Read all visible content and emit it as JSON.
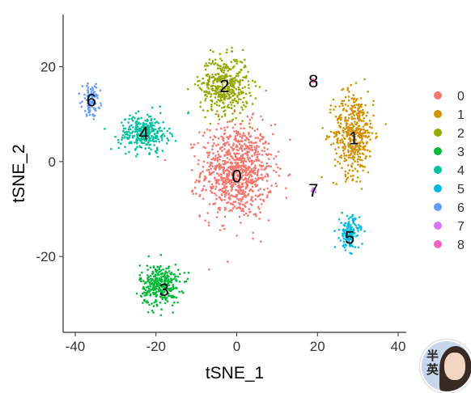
{
  "chart_data": {
    "type": "scatter",
    "title": "",
    "xlabel": "tSNE_1",
    "ylabel": "tSNE_2",
    "xlim": [
      -43,
      42
    ],
    "ylim": [
      -36,
      31
    ],
    "x_ticks": [
      -40,
      -20,
      0,
      20,
      40
    ],
    "y_ticks": [
      -20,
      0,
      20
    ],
    "grid": false,
    "legend_position": "right",
    "series": [
      {
        "name": "0",
        "color": "#f8766d",
        "center": [
          0,
          -2
        ],
        "spread": [
          8,
          9
        ],
        "approx_points": 900
      },
      {
        "name": "1",
        "color": "#d39200",
        "center": [
          29,
          6
        ],
        "spread": [
          4.5,
          8
        ],
        "approx_points": 450
      },
      {
        "name": "2",
        "color": "#93aa00",
        "center": [
          -3,
          16
        ],
        "spread": [
          5.5,
          5.5
        ],
        "approx_points": 420
      },
      {
        "name": "3",
        "color": "#00ba38",
        "center": [
          -19,
          -26
        ],
        "spread": [
          4.5,
          4
        ],
        "approx_points": 330
      },
      {
        "name": "4",
        "color": "#00c19f",
        "center": [
          -23,
          6
        ],
        "spread": [
          5.5,
          3.5
        ],
        "approx_points": 300
      },
      {
        "name": "5",
        "color": "#00b9e3",
        "center": [
          28,
          -15
        ],
        "spread": [
          2.2,
          3.2
        ],
        "approx_points": 150
      },
      {
        "name": "6",
        "color": "#619cff",
        "center": [
          -36,
          13
        ],
        "spread": [
          2,
          3
        ],
        "approx_points": 90
      },
      {
        "name": "7",
        "color": "#db72fb",
        "center": [
          19,
          -6
        ],
        "spread": [
          0.8,
          0.7
        ],
        "approx_points": 15
      },
      {
        "name": "8",
        "color": "#ff61c3",
        "center": [
          19,
          17
        ],
        "spread": [
          0.6,
          0.6
        ],
        "approx_points": 8
      }
    ],
    "cluster_labels": [
      {
        "text": "0",
        "x": 0,
        "y": -3
      },
      {
        "text": "1",
        "x": 29,
        "y": 5
      },
      {
        "text": "2",
        "x": -3,
        "y": 16
      },
      {
        "text": "3",
        "x": -18,
        "y": -27
      },
      {
        "text": "4",
        "x": -23,
        "y": 6
      },
      {
        "text": "5",
        "x": 28,
        "y": -16
      },
      {
        "text": "6",
        "x": -36,
        "y": 13
      },
      {
        "text": "7",
        "x": 19,
        "y": -6
      },
      {
        "text": "8",
        "x": 19,
        "y": 17
      }
    ]
  },
  "overlay": {
    "avatar_text": "半 英"
  }
}
